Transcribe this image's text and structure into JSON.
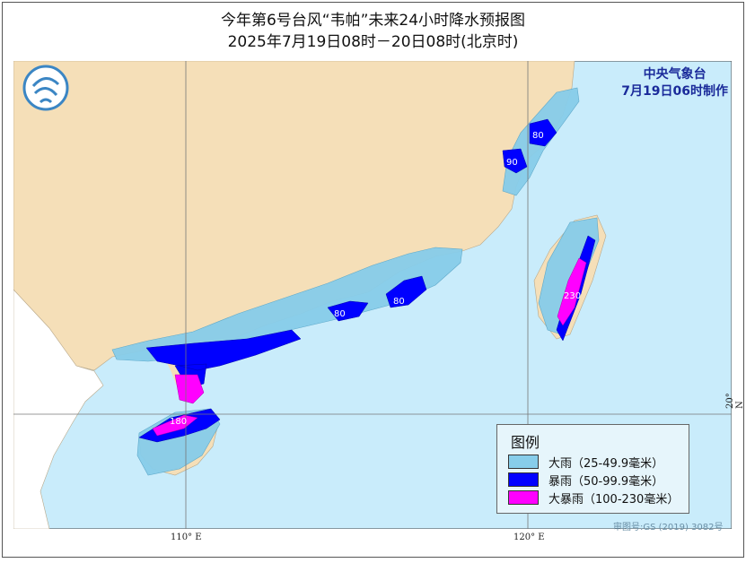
{
  "title": "今年第6号台风“韦帕”未来24小时降水预报图",
  "subtitle": "2025年7月19日08时－20日08时(北京时)",
  "agency": {
    "name": "中央气象台",
    "issued": "7月19日06时制作"
  },
  "legend": {
    "title": "图例",
    "items": [
      {
        "label": "大雨（25-49.9毫米）",
        "color": "#87cdea"
      },
      {
        "label": "暴雨（50-99.9毫米）",
        "color": "#0000ff"
      },
      {
        "label": "大暴雨（100-230毫米）",
        "color": "#ff00ff"
      }
    ]
  },
  "max_values": [
    "80",
    "90",
    "80",
    "80",
    "230",
    "180"
  ],
  "axes": {
    "lon1": "110° E",
    "lon2": "120° E",
    "lat1": "20° N"
  },
  "review_number": "审图号:GS (2019) 3082号",
  "colors": {
    "sea": "#c9ecfb",
    "land": "#f5dfb8",
    "foreign_land": "#ffffff"
  }
}
